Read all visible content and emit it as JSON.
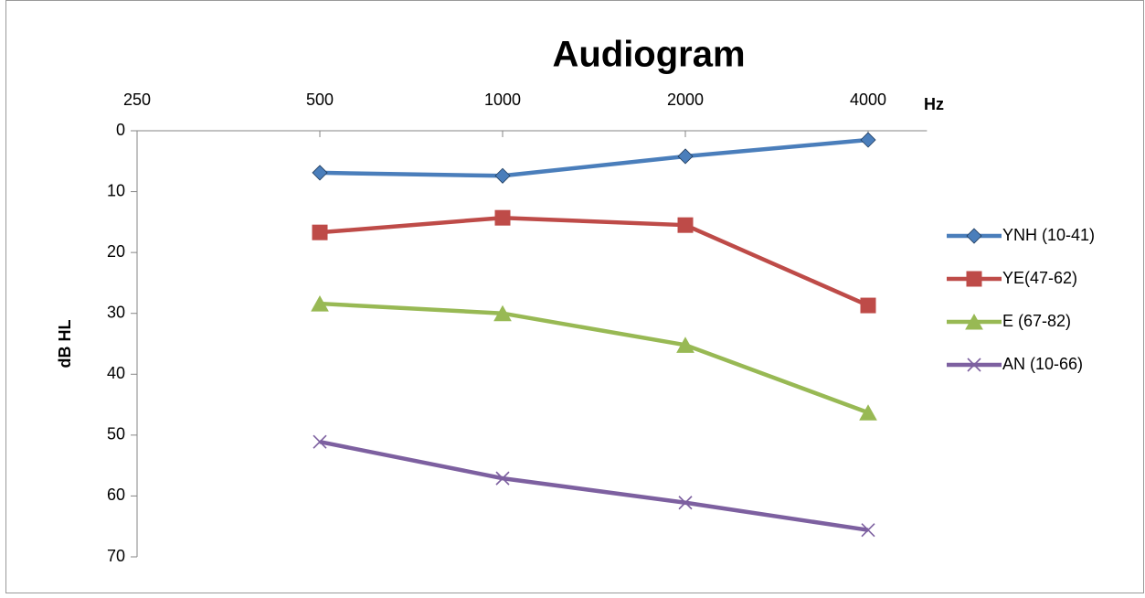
{
  "chart_data": {
    "type": "line",
    "title": "Audiogram",
    "x_label": "Hz",
    "y_label": "dB HL",
    "xscale": "log",
    "y_reversed": true,
    "xlim": [
      250,
      5000
    ],
    "xticks": [
      250,
      500,
      1000,
      2000,
      4000
    ],
    "ylim": [
      0,
      70
    ],
    "yticks": [
      0,
      10,
      20,
      30,
      40,
      50,
      60,
      70
    ],
    "x": [
      500,
      1000,
      2000,
      4000
    ],
    "series": [
      {
        "name": "YNH (10-41)",
        "color": "#4a7ebb",
        "marker": "diamond",
        "values": [
          6.9,
          7.4,
          4.2,
          1.5
        ]
      },
      {
        "name": "YE(47-62)",
        "color": "#be4b48",
        "marker": "square",
        "values": [
          16.7,
          14.3,
          15.5,
          28.7
        ]
      },
      {
        "name": "E (67-82)",
        "color": "#98b954",
        "marker": "triangle",
        "values": [
          28.4,
          30.0,
          35.2,
          46.3
        ]
      },
      {
        "name": "AN (10-66)",
        "color": "#7d60a0",
        "marker": "x",
        "values": [
          51.1,
          57.1,
          61.1,
          65.6
        ]
      }
    ]
  }
}
